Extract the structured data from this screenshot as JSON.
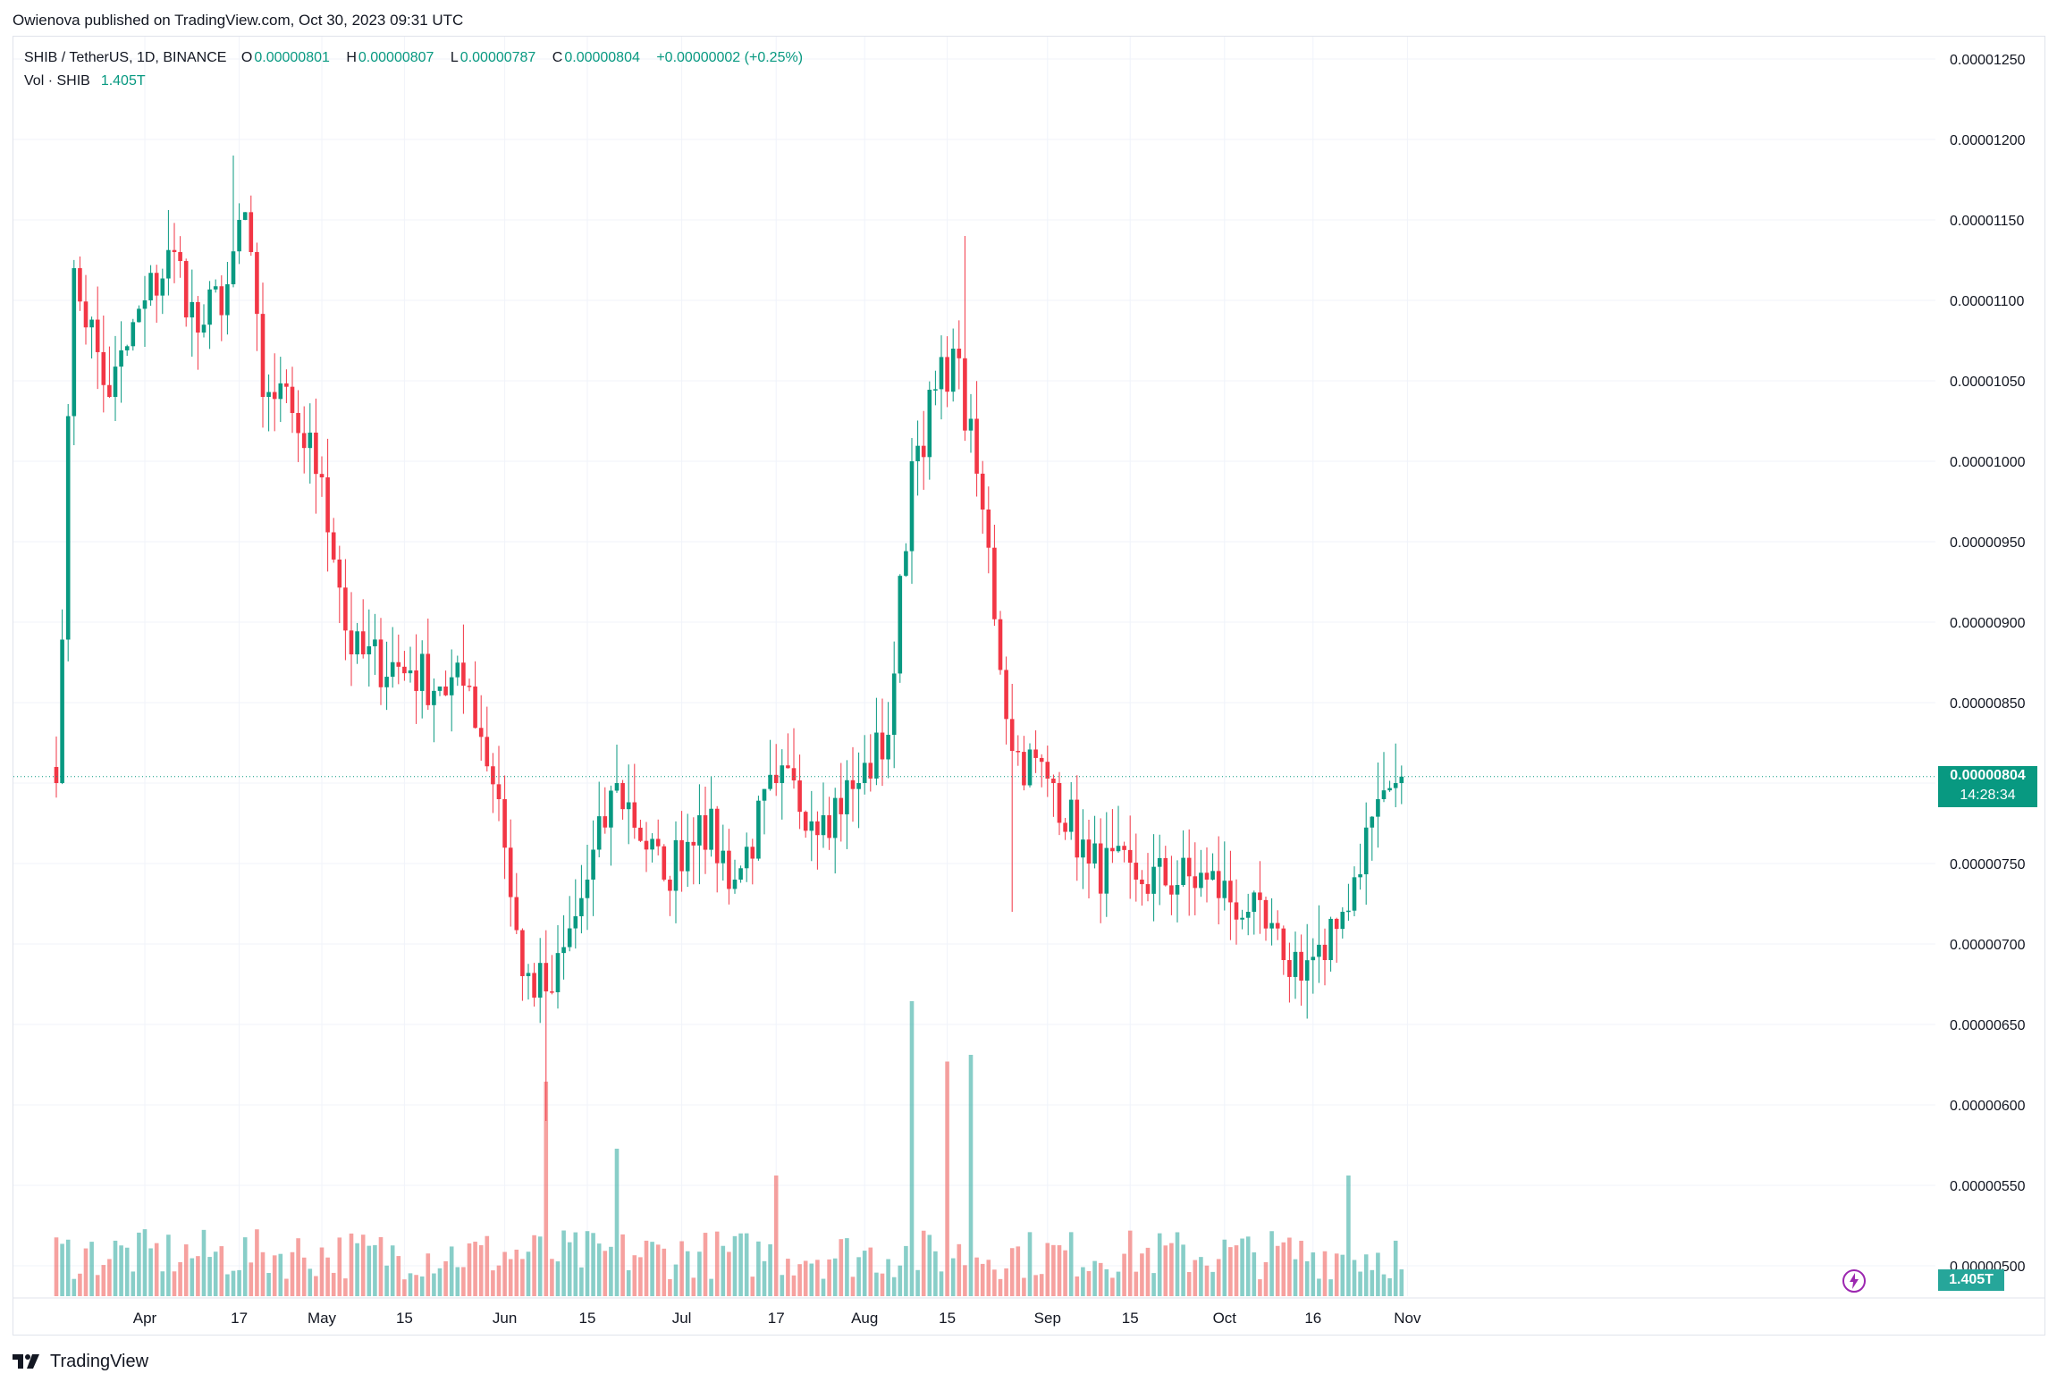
{
  "header": {
    "published_text": "Owienova published on TradingView.com, Oct 30, 2023 09:31 UTC"
  },
  "legend": {
    "symbol": "SHIB / TetherUS, 1D, BINANCE",
    "o_label": "O",
    "o_value": "0.00000801",
    "h_label": "H",
    "h_value": "0.00000807",
    "l_label": "L",
    "l_value": "0.00000787",
    "c_label": "C",
    "c_value": "0.00000804",
    "change": "+0.00000002 (+0.25%)",
    "vol_label": "Vol · SHIB",
    "vol_value": "1.405T"
  },
  "price_tag": {
    "price": "0.00000804",
    "countdown": "14:28:34"
  },
  "vol_tag": {
    "value": "1.405T"
  },
  "footer": {
    "brand": "TradingView"
  },
  "colors": {
    "up": "#089981",
    "down": "#f23645",
    "vol_up": "#26a69a",
    "vol_down": "#ef5350",
    "grid": "#f0f3fa",
    "axis_text": "#131722"
  },
  "icons": [
    "tradingview-logo-icon",
    "lightning-bolt-icon"
  ],
  "chart_data": {
    "type": "candlestick",
    "timeframe": "1D",
    "y_range": [
      4.9e-06,
      1.26e-05
    ],
    "y_ticks": [
      "0.00001250",
      "0.00001200",
      "0.00001150",
      "0.00001100",
      "0.00001050",
      "0.00001000",
      "0.00000950",
      "0.00000900",
      "0.00000850",
      "0.00000800",
      "0.00000750",
      "0.00000700",
      "0.00000650",
      "0.00000600",
      "0.00000550",
      "0.00000500"
    ],
    "y_tick_values": [
      1.25e-05,
      1.2e-05,
      1.15e-05,
      1.1e-05,
      1.05e-05,
      1e-05,
      9.5e-06,
      9e-06,
      8.5e-06,
      8e-06,
      7.5e-06,
      7e-06,
      6.5e-06,
      6e-06,
      5.5e-06,
      5e-06
    ],
    "x_ticks": [
      {
        "label": "Apr",
        "day": 0
      },
      {
        "label": "17",
        "day": 16
      },
      {
        "label": "May",
        "day": 30
      },
      {
        "label": "15",
        "day": 44
      },
      {
        "label": "Jun",
        "day": 61
      },
      {
        "label": "15",
        "day": 75
      },
      {
        "label": "Jul",
        "day": 91
      },
      {
        "label": "17",
        "day": 107
      },
      {
        "label": "Aug",
        "day": 122
      },
      {
        "label": "15",
        "day": 136
      },
      {
        "label": "Sep",
        "day": 153
      },
      {
        "label": "15",
        "day": 167
      },
      {
        "label": "Oct",
        "day": 183
      },
      {
        "label": "16",
        "day": 198
      },
      {
        "label": "Nov",
        "day": 214
      }
    ],
    "last_price": 8.04e-06,
    "anchors": [
      {
        "day": -15,
        "close": 8e-06
      },
      {
        "day": -12,
        "close": 1.12e-05
      },
      {
        "day": -6,
        "close": 1.04e-05
      },
      {
        "day": 0,
        "close": 1.1e-05
      },
      {
        "day": 5,
        "close": 1.13e-05
      },
      {
        "day": 9,
        "close": 1.08e-05
      },
      {
        "day": 14,
        "close": 1.11e-05
      },
      {
        "day": 16,
        "close": 1.15e-05
      },
      {
        "day": 18,
        "close": 1.13e-05
      },
      {
        "day": 20,
        "close": 1.04e-05
      },
      {
        "day": 25,
        "close": 1.03e-05
      },
      {
        "day": 30,
        "close": 9.9e-06
      },
      {
        "day": 35,
        "close": 8.8e-06
      },
      {
        "day": 45,
        "close": 8.7e-06
      },
      {
        "day": 50,
        "close": 8.6e-06
      },
      {
        "day": 55,
        "close": 8.6e-06
      },
      {
        "day": 60,
        "close": 7.9e-06
      },
      {
        "day": 64,
        "close": 6.8e-06
      },
      {
        "day": 69,
        "close": 6.7e-06
      },
      {
        "day": 75,
        "close": 7.4e-06
      },
      {
        "day": 80,
        "close": 8e-06
      },
      {
        "day": 88,
        "close": 7.4e-06
      },
      {
        "day": 94,
        "close": 7.8e-06
      },
      {
        "day": 100,
        "close": 7.4e-06
      },
      {
        "day": 107,
        "close": 8e-06
      },
      {
        "day": 115,
        "close": 7.8e-06
      },
      {
        "day": 121,
        "close": 8e-06
      },
      {
        "day": 126,
        "close": 8.3e-06
      },
      {
        "day": 130,
        "close": 1e-05
      },
      {
        "day": 137,
        "close": 1.07e-05
      },
      {
        "day": 142,
        "close": 9.7e-06
      },
      {
        "day": 147,
        "close": 8.2e-06
      },
      {
        "day": 154,
        "close": 8e-06
      },
      {
        "day": 160,
        "close": 7.5e-06
      },
      {
        "day": 168,
        "close": 7.4e-06
      },
      {
        "day": 180,
        "close": 7.4e-06
      },
      {
        "day": 187,
        "close": 7.2e-06
      },
      {
        "day": 193,
        "close": 6.9e-06
      },
      {
        "day": 200,
        "close": 6.9e-06
      },
      {
        "day": 203,
        "close": 7.2e-06
      },
      {
        "day": 209,
        "close": 7.9e-06
      },
      {
        "day": 212,
        "close": 8e-06
      },
      {
        "day": 213,
        "close": 8.04e-06
      }
    ],
    "volume_spikes": [
      {
        "day": 68,
        "value": 3.2
      },
      {
        "day": 80,
        "value": 2.2
      },
      {
        "day": 130,
        "value": 4.4
      },
      {
        "day": 136,
        "value": 3.5
      },
      {
        "day": 140,
        "value": 3.6
      },
      {
        "day": 107,
        "value": 1.8
      },
      {
        "day": 204,
        "value": 1.8
      }
    ],
    "volume_max": 4.4,
    "last_volume": 1.405
  }
}
